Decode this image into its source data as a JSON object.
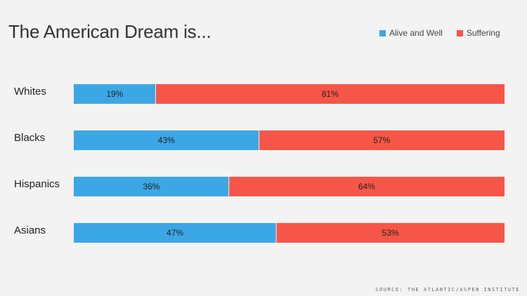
{
  "title": "The American Dream is...",
  "source": "SOURCE: THE ATLANTIC/ASPEN INSTITUTE",
  "legend": [
    {
      "label": "Alive and Well",
      "color": "#3ba7e5"
    },
    {
      "label": "Suffering",
      "color": "#f65648"
    }
  ],
  "chart_data": {
    "type": "bar",
    "orientation": "horizontal",
    "stacked": true,
    "title": "The American Dream is...",
    "categories": [
      "Whites",
      "Blacks",
      "Hispanics",
      "Asians"
    ],
    "series": [
      {
        "name": "Alive and Well",
        "values": [
          19,
          43,
          36,
          47
        ],
        "color": "#3ba7e5"
      },
      {
        "name": "Suffering",
        "values": [
          81,
          57,
          64,
          53
        ],
        "color": "#f65648"
      }
    ],
    "value_suffix": "%",
    "xlim": [
      0,
      100
    ],
    "grid": false,
    "legend_position": "top-right"
  }
}
